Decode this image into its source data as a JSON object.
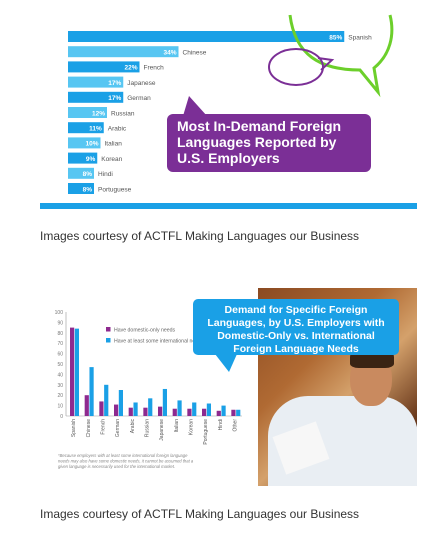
{
  "chart_data": [
    {
      "type": "bar",
      "orientation": "horizontal",
      "categories": [
        "Spanish",
        "Chinese",
        "French",
        "Japanese",
        "German",
        "Russian",
        "Arabic",
        "Italian",
        "Korean",
        "Hindi",
        "Portuguese"
      ],
      "values": [
        85,
        34,
        22,
        17,
        17,
        12,
        11,
        10,
        9,
        8,
        8
      ],
      "value_labels": [
        "85%",
        "34%",
        "22%",
        "17%",
        "17%",
        "12%",
        "11%",
        "10%",
        "9%",
        "8%",
        "8%"
      ],
      "title": "Most In-Demand Foreign Languages Reported by U.S. Employers",
      "xlim": [
        0,
        100
      ],
      "colors": [
        "#1aa0e6",
        "#57c6f2",
        "#1aa0e6",
        "#57c6f2",
        "#1aa0e6",
        "#57c6f2",
        "#1aa0e6",
        "#57c6f2",
        "#1aa0e6",
        "#57c6f2",
        "#1aa0e6"
      ],
      "grid": false
    },
    {
      "type": "bar",
      "orientation": "vertical",
      "title": "Demand for Specific Foreign Languages, by U.S. Employers with Domestic-Only vs. International Foreign Language Needs",
      "categories": [
        "Spanish",
        "Chinese",
        "French",
        "German",
        "Arabic",
        "Russian",
        "Japanese",
        "Italian",
        "Korean",
        "Portuguese",
        "Hindi",
        "Other"
      ],
      "series": [
        {
          "name": "Have domestic-only needs",
          "color": "#8e2a8f",
          "values": [
            85,
            20,
            14,
            11,
            8,
            8,
            9,
            7,
            7,
            7,
            5,
            6
          ]
        },
        {
          "name": "Have at least some international needs*",
          "color": "#1aa0e6",
          "values": [
            84,
            47,
            30,
            25,
            13,
            17,
            26,
            15,
            13,
            12,
            10,
            6
          ]
        }
      ],
      "yticks": [
        0,
        10,
        20,
        30,
        40,
        50,
        60,
        70,
        80,
        90,
        100
      ],
      "ylim": [
        0,
        100
      ],
      "legend": "top-right",
      "footnote": "*Because employers with at least some international foreign language needs may also have some domestic needs, it cannot be assumed that a given language is necessarily used for the international market."
    }
  ],
  "captions": {
    "first": "Images courtesy of ACTFL Making Languages our Business",
    "second": "Images courtesy of ACTFL Making Languages our Business"
  }
}
